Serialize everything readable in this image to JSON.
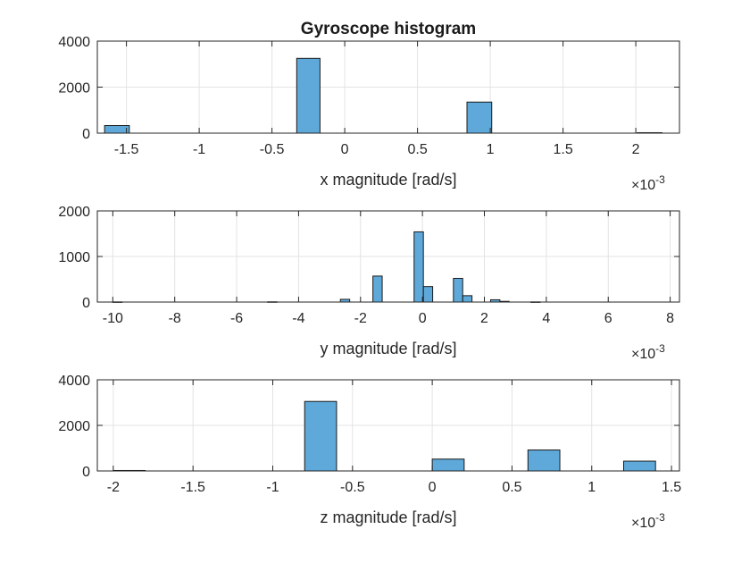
{
  "figure_title": "Gyroscope histogram",
  "colors": {
    "bar_fill": "#5ea9d9",
    "bar_edge": "#1a1a1a",
    "grid": "#e3e3e3",
    "axis": "#262626"
  },
  "chart_data": [
    {
      "type": "bar",
      "title": "Gyroscope histogram",
      "xlabel": "x magnitude [rad/s]",
      "ylabel": "",
      "x_exponent": "×10",
      "x_exponent_power": "-3",
      "xlim": [
        -1.7,
        2.3
      ],
      "ylim": [
        0,
        4000
      ],
      "xticks": [
        -1.5,
        -1,
        -0.5,
        0,
        0.5,
        1,
        1.5,
        2
      ],
      "xtick_labels": [
        "-1.5",
        "-1",
        "-0.5",
        "0",
        "0.5",
        "1",
        "1.5",
        "2"
      ],
      "yticks": [
        0,
        2000,
        4000
      ],
      "ytick_labels": [
        "0",
        "2000",
        "4000"
      ],
      "grid": true,
      "bars": [
        {
          "x0": -1.65,
          "x1": -1.48,
          "value": 330
        },
        {
          "x0": -0.33,
          "x1": -0.17,
          "value": 3250
        },
        {
          "x0": 0.84,
          "x1": 1.01,
          "value": 1350
        },
        {
          "x0": 2.01,
          "x1": 2.18,
          "value": 20
        }
      ]
    },
    {
      "type": "bar",
      "title": "",
      "xlabel": "y magnitude [rad/s]",
      "ylabel": "",
      "x_exponent": "×10",
      "x_exponent_power": "-3",
      "xlim": [
        -10.5,
        8.3
      ],
      "ylim": [
        0,
        2000
      ],
      "xticks": [
        -10,
        -8,
        -6,
        -4,
        -2,
        0,
        2,
        4,
        6,
        8
      ],
      "xtick_labels": [
        "-10",
        "-8",
        "-6",
        "-4",
        "-2",
        "0",
        "2",
        "4",
        "6",
        "8"
      ],
      "yticks": [
        0,
        1000,
        2000
      ],
      "ytick_labels": [
        "0",
        "1000",
        "2000"
      ],
      "grid": true,
      "bars": [
        {
          "x0": -10.0,
          "x1": -9.7,
          "value": 3
        },
        {
          "x0": -5.0,
          "x1": -4.7,
          "value": 5
        },
        {
          "x0": -2.65,
          "x1": -2.35,
          "value": 60
        },
        {
          "x0": -1.6,
          "x1": -1.3,
          "value": 570
        },
        {
          "x0": -0.27,
          "x1": 0.03,
          "value": 1540
        },
        {
          "x0": 0.03,
          "x1": 0.33,
          "value": 340
        },
        {
          "x0": 1.0,
          "x1": 1.3,
          "value": 520
        },
        {
          "x0": 1.3,
          "x1": 1.6,
          "value": 140
        },
        {
          "x0": 2.2,
          "x1": 2.5,
          "value": 50
        },
        {
          "x0": 2.5,
          "x1": 2.8,
          "value": 15
        },
        {
          "x0": 3.5,
          "x1": 3.8,
          "value": 3
        }
      ]
    },
    {
      "type": "bar",
      "title": "",
      "xlabel": "z magnitude [rad/s]",
      "ylabel": "",
      "x_exponent": "×10",
      "x_exponent_power": "-3",
      "xlim": [
        -2.1,
        1.55
      ],
      "ylim": [
        0,
        4000
      ],
      "xticks": [
        -2,
        -1.5,
        -1,
        -0.5,
        0,
        0.5,
        1,
        1.5
      ],
      "xtick_labels": [
        "-2",
        "-1.5",
        "-1",
        "-0.5",
        "0",
        "0.5",
        "1",
        "1.5"
      ],
      "yticks": [
        0,
        2000,
        4000
      ],
      "ytick_labels": [
        "0",
        "2000",
        "4000"
      ],
      "grid": true,
      "bars": [
        {
          "x0": -2.0,
          "x1": -1.8,
          "value": 20
        },
        {
          "x0": -0.8,
          "x1": -0.6,
          "value": 3050
        },
        {
          "x0": 0.0,
          "x1": 0.2,
          "value": 520
        },
        {
          "x0": 0.6,
          "x1": 0.8,
          "value": 920
        },
        {
          "x0": 1.2,
          "x1": 1.4,
          "value": 430
        }
      ]
    }
  ]
}
